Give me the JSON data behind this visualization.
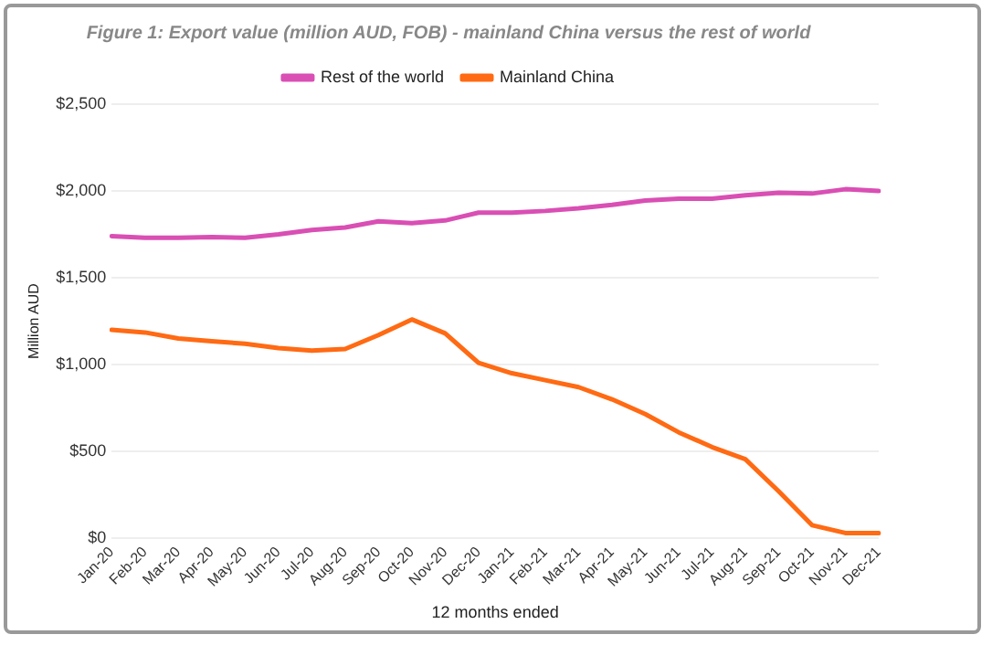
{
  "chart_data": {
    "type": "line",
    "title": "Figure 1: Export value (million AUD, FOB) - mainland China versus the rest of world",
    "xlabel": "12 months ended",
    "ylabel": "Million AUD",
    "categories": [
      "Jan-20",
      "Feb-20",
      "Mar-20",
      "Apr-20",
      "May-20",
      "Jun-20",
      "Jul-20",
      "Aug-20",
      "Sep-20",
      "Oct-20",
      "Nov-20",
      "Dec-20",
      "Jan-21",
      "Feb-21",
      "Mar-21",
      "Apr-21",
      "May-21",
      "Jun-21",
      "Jul-21",
      "Aug-21",
      "Sep-21",
      "Oct-21",
      "Nov-21",
      "Dec-21"
    ],
    "series": [
      {
        "name": "Rest of the world",
        "color": "#d94fb4",
        "values": [
          1740,
          1730,
          1730,
          1735,
          1730,
          1750,
          1775,
          1790,
          1825,
          1815,
          1830,
          1875,
          1875,
          1885,
          1900,
          1920,
          1945,
          1955,
          1955,
          1975,
          1990,
          1985,
          2010,
          2000
        ]
      },
      {
        "name": "Mainland China",
        "color": "#ff6a13",
        "values": [
          1200,
          1185,
          1150,
          1135,
          1120,
          1095,
          1080,
          1090,
          1170,
          1260,
          1180,
          1010,
          950,
          910,
          870,
          800,
          715,
          610,
          525,
          455,
          270,
          75,
          30,
          30
        ]
      }
    ],
    "ylim": [
      0,
      2500
    ],
    "yticks": [
      {
        "value": 0,
        "label": "$0"
      },
      {
        "value": 500,
        "label": "$500"
      },
      {
        "value": 1000,
        "label": "$1,000"
      },
      {
        "value": 1500,
        "label": "$1,500"
      },
      {
        "value": 2000,
        "label": "$2,000"
      },
      {
        "value": 2500,
        "label": "$2,500"
      }
    ],
    "grid": "y",
    "legend": "top",
    "marker": "none",
    "line_style": "solid"
  }
}
